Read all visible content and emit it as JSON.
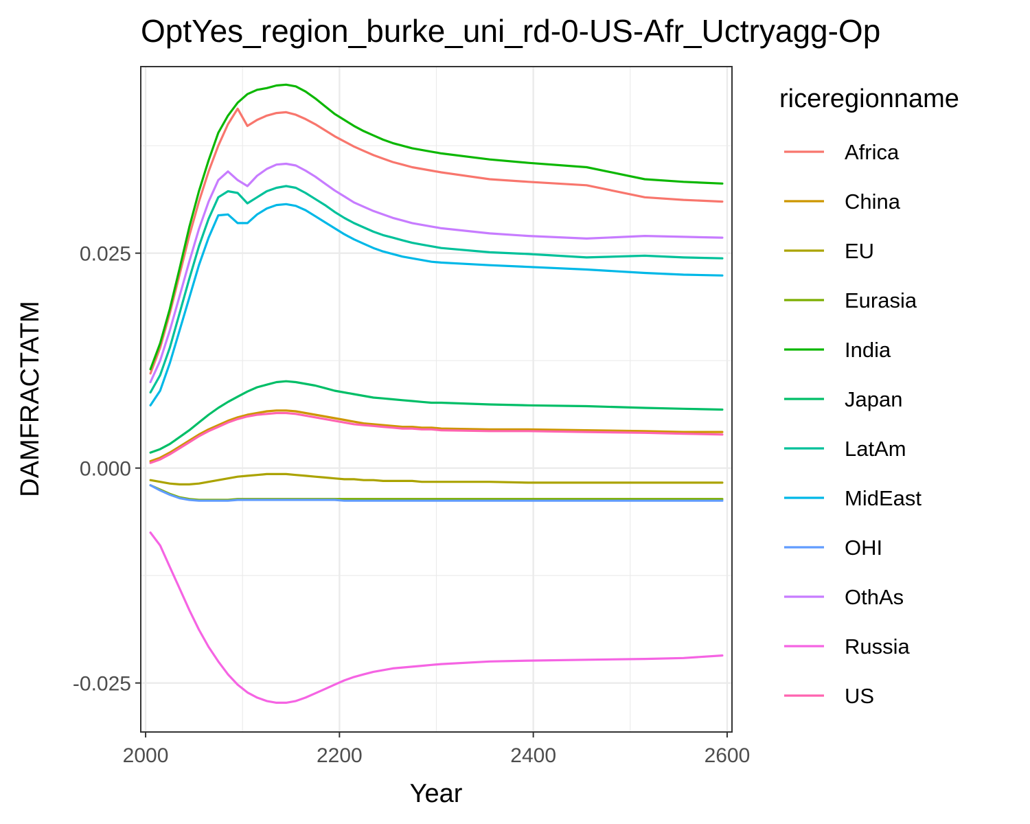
{
  "chart_data": {
    "type": "line",
    "title": "OptYes_region_burke_uni_rd-0-US-Afr_Uctryagg-Op",
    "xlabel": "Year",
    "ylabel": "DAMFRACTATM",
    "xlim": [
      1995,
      2605
    ],
    "ylim": [
      -0.0307,
      0.0467
    ],
    "x_ticks": [
      2000,
      2200,
      2400,
      2600
    ],
    "x_tick_labels": [
      "2000",
      "2200",
      "2400",
      "2600"
    ],
    "y_ticks": [
      -0.025,
      0,
      0.025
    ],
    "y_tick_labels": [
      "-0.025",
      "0.000",
      "0.025"
    ],
    "grid": true,
    "legend": {
      "title": "riceregionname",
      "position": "right"
    },
    "x": [
      2005,
      2015,
      2025,
      2035,
      2045,
      2055,
      2065,
      2075,
      2085,
      2095,
      2105,
      2115,
      2125,
      2135,
      2145,
      2155,
      2165,
      2175,
      2185,
      2195,
      2205,
      2215,
      2225,
      2235,
      2245,
      2255,
      2265,
      2275,
      2285,
      2295,
      2305,
      2355,
      2395,
      2455,
      2515,
      2555,
      2595
    ],
    "series": [
      {
        "name": "Africa",
        "color": "#F8766D",
        "values": [
          0.011,
          0.014,
          0.018,
          0.0225,
          0.027,
          0.031,
          0.0345,
          0.0375,
          0.04,
          0.0418,
          0.0398,
          0.0405,
          0.041,
          0.0413,
          0.0414,
          0.0411,
          0.0406,
          0.04,
          0.0393,
          0.0386,
          0.038,
          0.0374,
          0.0369,
          0.0364,
          0.036,
          0.0356,
          0.0353,
          0.035,
          0.0348,
          0.0346,
          0.0344,
          0.0336,
          0.0333,
          0.0329,
          0.0315,
          0.0312,
          0.031
        ]
      },
      {
        "name": "China",
        "color": "#CD9600",
        "values": [
          0.0008,
          0.0012,
          0.0018,
          0.0025,
          0.0032,
          0.0039,
          0.0045,
          0.005,
          0.0055,
          0.0059,
          0.0062,
          0.0064,
          0.0066,
          0.0067,
          0.0067,
          0.0066,
          0.0064,
          0.0062,
          0.006,
          0.0058,
          0.0056,
          0.0054,
          0.0052,
          0.0051,
          0.005,
          0.0049,
          0.0048,
          0.0048,
          0.0047,
          0.0047,
          0.0046,
          0.0045,
          0.0045,
          0.0044,
          0.0043,
          0.0042,
          0.0042
        ]
      },
      {
        "name": "EU",
        "color": "#ABA300",
        "values": [
          -0.0014,
          -0.0016,
          -0.0018,
          -0.0019,
          -0.0019,
          -0.0018,
          -0.0016,
          -0.0014,
          -0.0012,
          -0.001,
          -0.0009,
          -0.0008,
          -0.0007,
          -0.0007,
          -0.0007,
          -0.0008,
          -0.0009,
          -0.001,
          -0.0011,
          -0.0012,
          -0.0013,
          -0.0013,
          -0.0014,
          -0.0014,
          -0.0015,
          -0.0015,
          -0.0015,
          -0.0015,
          -0.0016,
          -0.0016,
          -0.0016,
          -0.0016,
          -0.0017,
          -0.0017,
          -0.0017,
          -0.0017,
          -0.0017
        ]
      },
      {
        "name": "Eurasia",
        "color": "#7CAE00",
        "values": [
          -0.002,
          -0.0025,
          -0.003,
          -0.0034,
          -0.0036,
          -0.0037,
          -0.0037,
          -0.0037,
          -0.0037,
          -0.0036,
          -0.0036,
          -0.0036,
          -0.0036,
          -0.0036,
          -0.0036,
          -0.0036,
          -0.0036,
          -0.0036,
          -0.0036,
          -0.0036,
          -0.0036,
          -0.0036,
          -0.0036,
          -0.0036,
          -0.0036,
          -0.0036,
          -0.0036,
          -0.0036,
          -0.0036,
          -0.0036,
          -0.0036,
          -0.0036,
          -0.0036,
          -0.0036,
          -0.0036,
          -0.0036,
          -0.0036
        ]
      },
      {
        "name": "India",
        "color": "#0CB702",
        "values": [
          0.0115,
          0.0145,
          0.0185,
          0.0232,
          0.028,
          0.0322,
          0.0358,
          0.039,
          0.041,
          0.0425,
          0.0435,
          0.044,
          0.0442,
          0.0445,
          0.0446,
          0.0444,
          0.0438,
          0.043,
          0.0421,
          0.0412,
          0.0405,
          0.0398,
          0.0392,
          0.0387,
          0.0382,
          0.0378,
          0.0375,
          0.0372,
          0.037,
          0.0368,
          0.0366,
          0.0359,
          0.0355,
          0.035,
          0.0336,
          0.0333,
          0.0331
        ]
      },
      {
        "name": "Japan",
        "color": "#00BE67",
        "values": [
          0.0018,
          0.0022,
          0.0028,
          0.0036,
          0.0044,
          0.0053,
          0.0062,
          0.007,
          0.0077,
          0.0083,
          0.0089,
          0.0094,
          0.0097,
          0.01,
          0.0101,
          0.01,
          0.0098,
          0.0096,
          0.0093,
          0.009,
          0.0088,
          0.0086,
          0.0084,
          0.0082,
          0.0081,
          0.008,
          0.0079,
          0.0078,
          0.0077,
          0.0076,
          0.0076,
          0.0074,
          0.0073,
          0.0072,
          0.007,
          0.0069,
          0.0068
        ]
      },
      {
        "name": "LatAm",
        "color": "#00C19A",
        "values": [
          0.0088,
          0.0108,
          0.014,
          0.018,
          0.022,
          0.0258,
          0.029,
          0.0315,
          0.0322,
          0.032,
          0.0308,
          0.0315,
          0.0322,
          0.0326,
          0.0328,
          0.0326,
          0.032,
          0.0313,
          0.0306,
          0.0298,
          0.0291,
          0.0285,
          0.028,
          0.0275,
          0.0271,
          0.0268,
          0.0265,
          0.0262,
          0.026,
          0.0258,
          0.0256,
          0.0251,
          0.0249,
          0.0245,
          0.0247,
          0.0245,
          0.0244
        ]
      },
      {
        "name": "MidEast",
        "color": "#00B8E7",
        "values": [
          0.0073,
          0.009,
          0.0122,
          0.016,
          0.0198,
          0.0236,
          0.0268,
          0.0294,
          0.0295,
          0.0285,
          0.0285,
          0.0295,
          0.0302,
          0.0306,
          0.0307,
          0.0305,
          0.03,
          0.0293,
          0.0286,
          0.0279,
          0.0272,
          0.0266,
          0.0261,
          0.0256,
          0.0252,
          0.0249,
          0.0246,
          0.0244,
          0.0242,
          0.024,
          0.0239,
          0.0236,
          0.0234,
          0.0231,
          0.0227,
          0.0225,
          0.0224
        ]
      },
      {
        "name": "OHI",
        "color": "#619CFF",
        "values": [
          -0.002,
          -0.0026,
          -0.0031,
          -0.0035,
          -0.0037,
          -0.0038,
          -0.0038,
          -0.0038,
          -0.0038,
          -0.0037,
          -0.0037,
          -0.0037,
          -0.0037,
          -0.0037,
          -0.0037,
          -0.0037,
          -0.0037,
          -0.0037,
          -0.0037,
          -0.0037,
          -0.0038,
          -0.0038,
          -0.0038,
          -0.0038,
          -0.0038,
          -0.0038,
          -0.0038,
          -0.0038,
          -0.0038,
          -0.0038,
          -0.0038,
          -0.0038,
          -0.0038,
          -0.0038,
          -0.0038,
          -0.0038,
          -0.0038
        ]
      },
      {
        "name": "OthAs",
        "color": "#C77CFF",
        "values": [
          0.01,
          0.0125,
          0.016,
          0.02,
          0.024,
          0.0278,
          0.031,
          0.0335,
          0.0345,
          0.0335,
          0.0328,
          0.034,
          0.0348,
          0.0353,
          0.0354,
          0.0352,
          0.0346,
          0.0339,
          0.0331,
          0.0323,
          0.0316,
          0.0309,
          0.0304,
          0.0299,
          0.0295,
          0.0291,
          0.0288,
          0.0285,
          0.0283,
          0.0281,
          0.0279,
          0.0273,
          0.027,
          0.0267,
          0.027,
          0.0269,
          0.0268
        ]
      },
      {
        "name": "Russia",
        "color": "#F564E3",
        "values": [
          -0.0075,
          -0.009,
          -0.0115,
          -0.014,
          -0.0165,
          -0.0188,
          -0.0208,
          -0.0225,
          -0.024,
          -0.0252,
          -0.0261,
          -0.0267,
          -0.0271,
          -0.0273,
          -0.0273,
          -0.0271,
          -0.0267,
          -0.0262,
          -0.0257,
          -0.0252,
          -0.0247,
          -0.0243,
          -0.024,
          -0.0237,
          -0.0235,
          -0.0233,
          -0.0232,
          -0.0231,
          -0.023,
          -0.0229,
          -0.0228,
          -0.0225,
          -0.0224,
          -0.0223,
          -0.0222,
          -0.0221,
          -0.0218
        ]
      },
      {
        "name": "US",
        "color": "#FF64B0",
        "values": [
          0.0006,
          0.001,
          0.0016,
          0.0023,
          0.003,
          0.0037,
          0.0043,
          0.0048,
          0.0053,
          0.0057,
          0.006,
          0.0062,
          0.0063,
          0.0064,
          0.0064,
          0.0063,
          0.0061,
          0.0059,
          0.0057,
          0.0055,
          0.0053,
          0.0051,
          0.005,
          0.0049,
          0.0048,
          0.0047,
          0.0046,
          0.0046,
          0.0045,
          0.0045,
          0.0044,
          0.0043,
          0.0043,
          0.0042,
          0.0041,
          0.004,
          0.0039
        ]
      }
    ]
  }
}
